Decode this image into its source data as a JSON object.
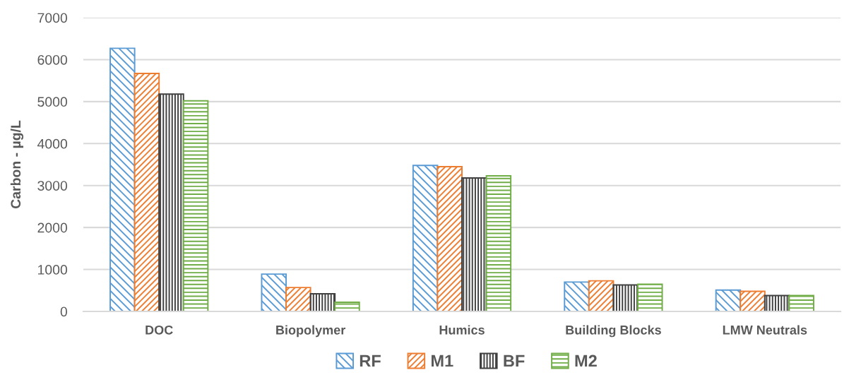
{
  "chart_data": {
    "type": "bar",
    "ylabel": "Carbon - µg/L",
    "categories": [
      "DOC",
      "Biopolymer",
      "Humics",
      "Building Blocks",
      "LMW Neutrals"
    ],
    "series": [
      {
        "name": "RF",
        "color": "#5b9bd5",
        "values": [
          6270,
          890,
          3480,
          700,
          510
        ]
      },
      {
        "name": "M1",
        "color": "#ed7d31",
        "values": [
          5670,
          570,
          3450,
          730,
          480
        ]
      },
      {
        "name": "BF",
        "color": "#404040",
        "values": [
          5180,
          420,
          3180,
          630,
          380
        ]
      },
      {
        "name": "M2",
        "color": "#70ad47",
        "values": [
          5020,
          220,
          3230,
          650,
          380
        ]
      }
    ],
    "ylim": [
      0,
      7000
    ],
    "yticks": [
      0,
      1000,
      2000,
      3000,
      4000,
      5000,
      6000,
      7000
    ],
    "grid": "y",
    "legend": "bottom"
  }
}
